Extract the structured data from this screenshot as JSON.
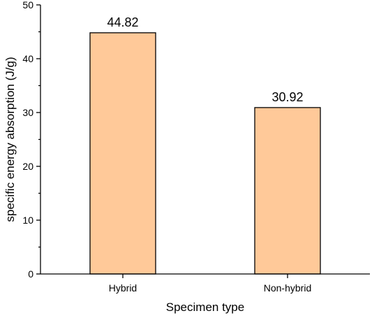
{
  "chart_data": {
    "type": "bar",
    "categories": [
      "Hybrid",
      "Non-hybrid"
    ],
    "values": [
      44.82,
      30.92
    ],
    "data_labels": [
      "44.82",
      "30.92"
    ],
    "title": "",
    "xlabel": "Specimen type",
    "ylabel": "specific energy absorption (J/g)",
    "ylim": [
      0,
      50
    ],
    "yticks": [
      0,
      10,
      20,
      30,
      40,
      50
    ],
    "ytick_labels": [
      "0",
      "10",
      "20",
      "30",
      "40",
      "50"
    ],
    "grid": false,
    "legend": "none",
    "colors": {
      "bar_fill": "#FFC999",
      "bar_stroke": "#000000",
      "axis": "#000000"
    }
  }
}
